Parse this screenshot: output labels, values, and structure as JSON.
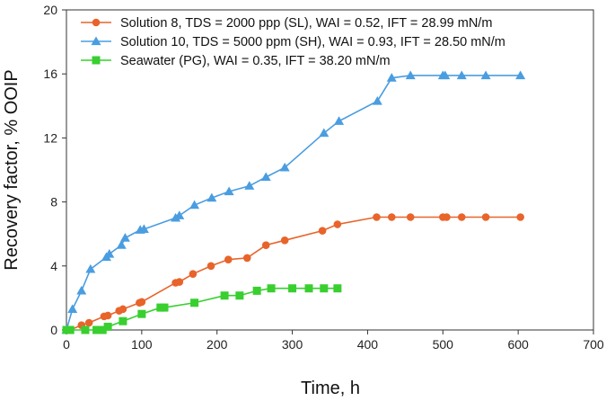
{
  "chart_data": {
    "type": "line",
    "xlabel": "Time, h",
    "ylabel": "Recovery factor, % OOIP",
    "xlim": [
      0,
      700
    ],
    "ylim": [
      0,
      20
    ],
    "xticks": [
      0,
      100,
      200,
      300,
      400,
      500,
      600,
      700
    ],
    "yticks": [
      0,
      4,
      8,
      12,
      16,
      20
    ],
    "grid": false,
    "legend_position": "top-left",
    "series": [
      {
        "name": "Solution 8, TDS = 2000 ppp (SL), WAI = 0.52, IFT = 28.99 mN/m",
        "color": "#e8642a",
        "marker": "circle",
        "x": [
          0,
          5,
          20,
          30,
          50,
          55,
          70,
          75,
          97,
          100,
          145,
          150,
          168,
          192,
          215,
          240,
          265,
          290,
          340,
          360,
          412,
          432,
          457,
          500,
          505,
          525,
          557,
          603
        ],
        "y": [
          0,
          0,
          0.3,
          0.45,
          0.85,
          0.9,
          1.2,
          1.3,
          1.7,
          1.75,
          2.95,
          3.0,
          3.5,
          4.0,
          4.4,
          4.5,
          5.3,
          5.6,
          6.2,
          6.6,
          7.05,
          7.05,
          7.05,
          7.05,
          7.05,
          7.05,
          7.05,
          7.05
        ]
      },
      {
        "name": "Solution 10, TDS = 5000 ppm (SH), WAI = 0.93, IFT = 28.50 mN/m",
        "color": "#4a9de0",
        "marker": "triangle",
        "x": [
          0,
          8,
          20,
          32,
          53,
          57,
          73,
          78,
          98,
          103,
          145,
          150,
          170,
          193,
          216,
          243,
          265,
          290,
          342,
          362,
          413,
          432,
          457,
          500,
          503,
          525,
          557,
          603
        ],
        "y": [
          0,
          1.3,
          2.45,
          3.8,
          4.55,
          4.75,
          5.3,
          5.75,
          6.25,
          6.3,
          7.0,
          7.15,
          7.8,
          8.25,
          8.65,
          9.0,
          9.55,
          10.15,
          12.3,
          13.05,
          14.3,
          15.75,
          15.9,
          15.9,
          15.9,
          15.9,
          15.9,
          15.9
        ]
      },
      {
        "name": "Seawater (PG), WAI = 0.35, IFT = 38.20 mN/m",
        "color": "#38cf2f",
        "marker": "square",
        "x": [
          0,
          5,
          25,
          40,
          48,
          55,
          75,
          100,
          125,
          130,
          170,
          210,
          230,
          253,
          272,
          300,
          322,
          342,
          360
        ],
        "y": [
          0,
          0,
          0,
          0,
          0,
          0.2,
          0.55,
          1.0,
          1.4,
          1.4,
          1.7,
          2.15,
          2.15,
          2.45,
          2.6,
          2.6,
          2.6,
          2.6,
          2.6
        ]
      }
    ]
  }
}
